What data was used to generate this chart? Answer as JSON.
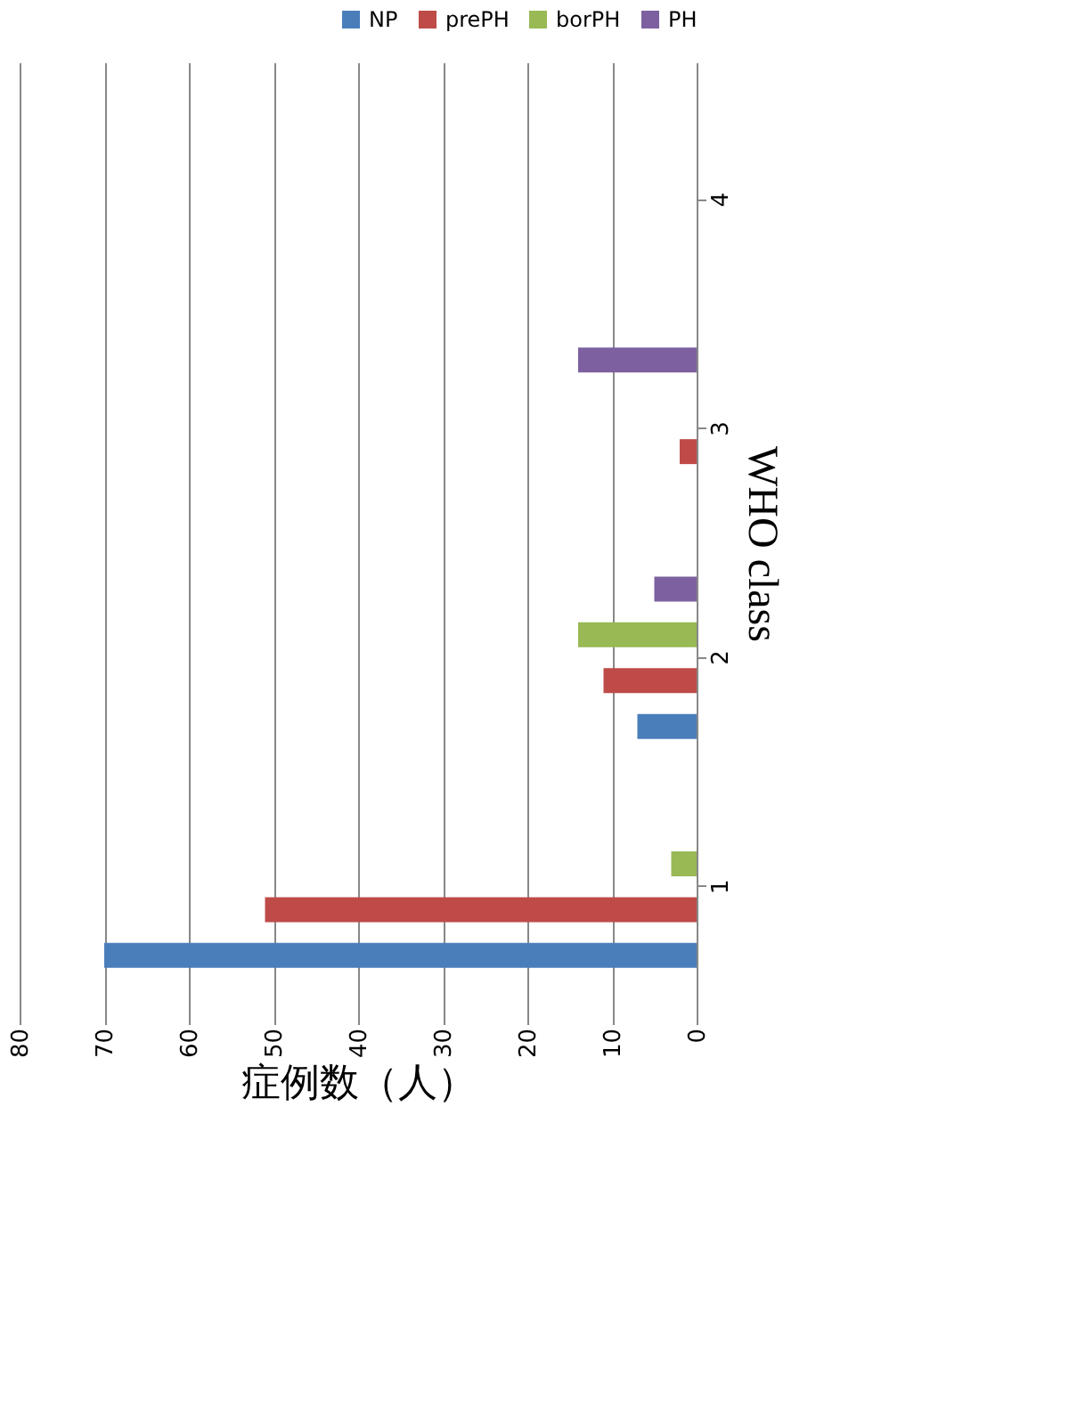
{
  "chart_data": {
    "type": "bar",
    "orientation": "horizontal",
    "xlabel": "症例数（人）",
    "ylabel": "WHO class",
    "categories": [
      "4",
      "3",
      "2",
      "1"
    ],
    "series": [
      {
        "name": "NP",
        "color": "#4a7ebb",
        "values": [
          0,
          0,
          7,
          70
        ]
      },
      {
        "name": "prePH",
        "color": "#be4b48",
        "values": [
          0,
          2,
          11,
          51
        ]
      },
      {
        "name": "borPH",
        "color": "#98b954",
        "values": [
          0,
          0,
          14,
          3
        ]
      },
      {
        "name": "PH",
        "color": "#7d60a0",
        "values": [
          0,
          14,
          5,
          0
        ]
      }
    ],
    "xlim": [
      80,
      0
    ],
    "xticks": [
      80,
      70,
      60,
      50,
      40,
      30,
      20,
      10,
      0
    ],
    "grid": "x",
    "legend": "top right"
  }
}
